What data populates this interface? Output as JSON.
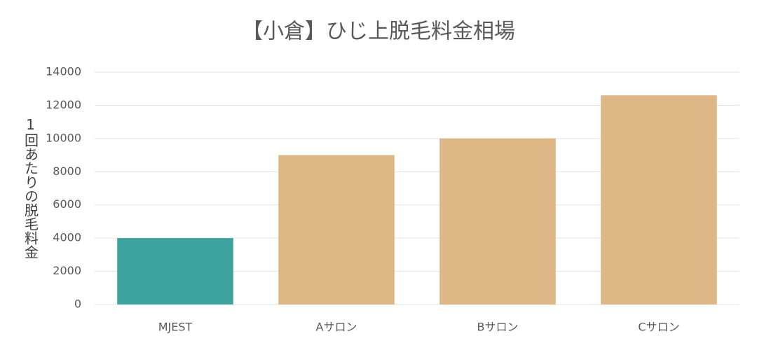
{
  "chart_data": {
    "type": "bar",
    "title": "【小倉】ひじ上脱毛料金相場",
    "y_label": "1回あたりの脱毛料金",
    "categories": [
      "MJEST",
      "Aサロン",
      "Bサロン",
      "Cサロン"
    ],
    "values": [
      4000,
      9000,
      10000,
      12600
    ],
    "colors": [
      "#3ea39f",
      "#ddb886",
      "#ddb886",
      "#ddb886"
    ],
    "ylim": [
      0,
      14000
    ],
    "yticks": [
      0,
      2000,
      4000,
      6000,
      8000,
      10000,
      12000,
      14000
    ],
    "grid": true
  }
}
